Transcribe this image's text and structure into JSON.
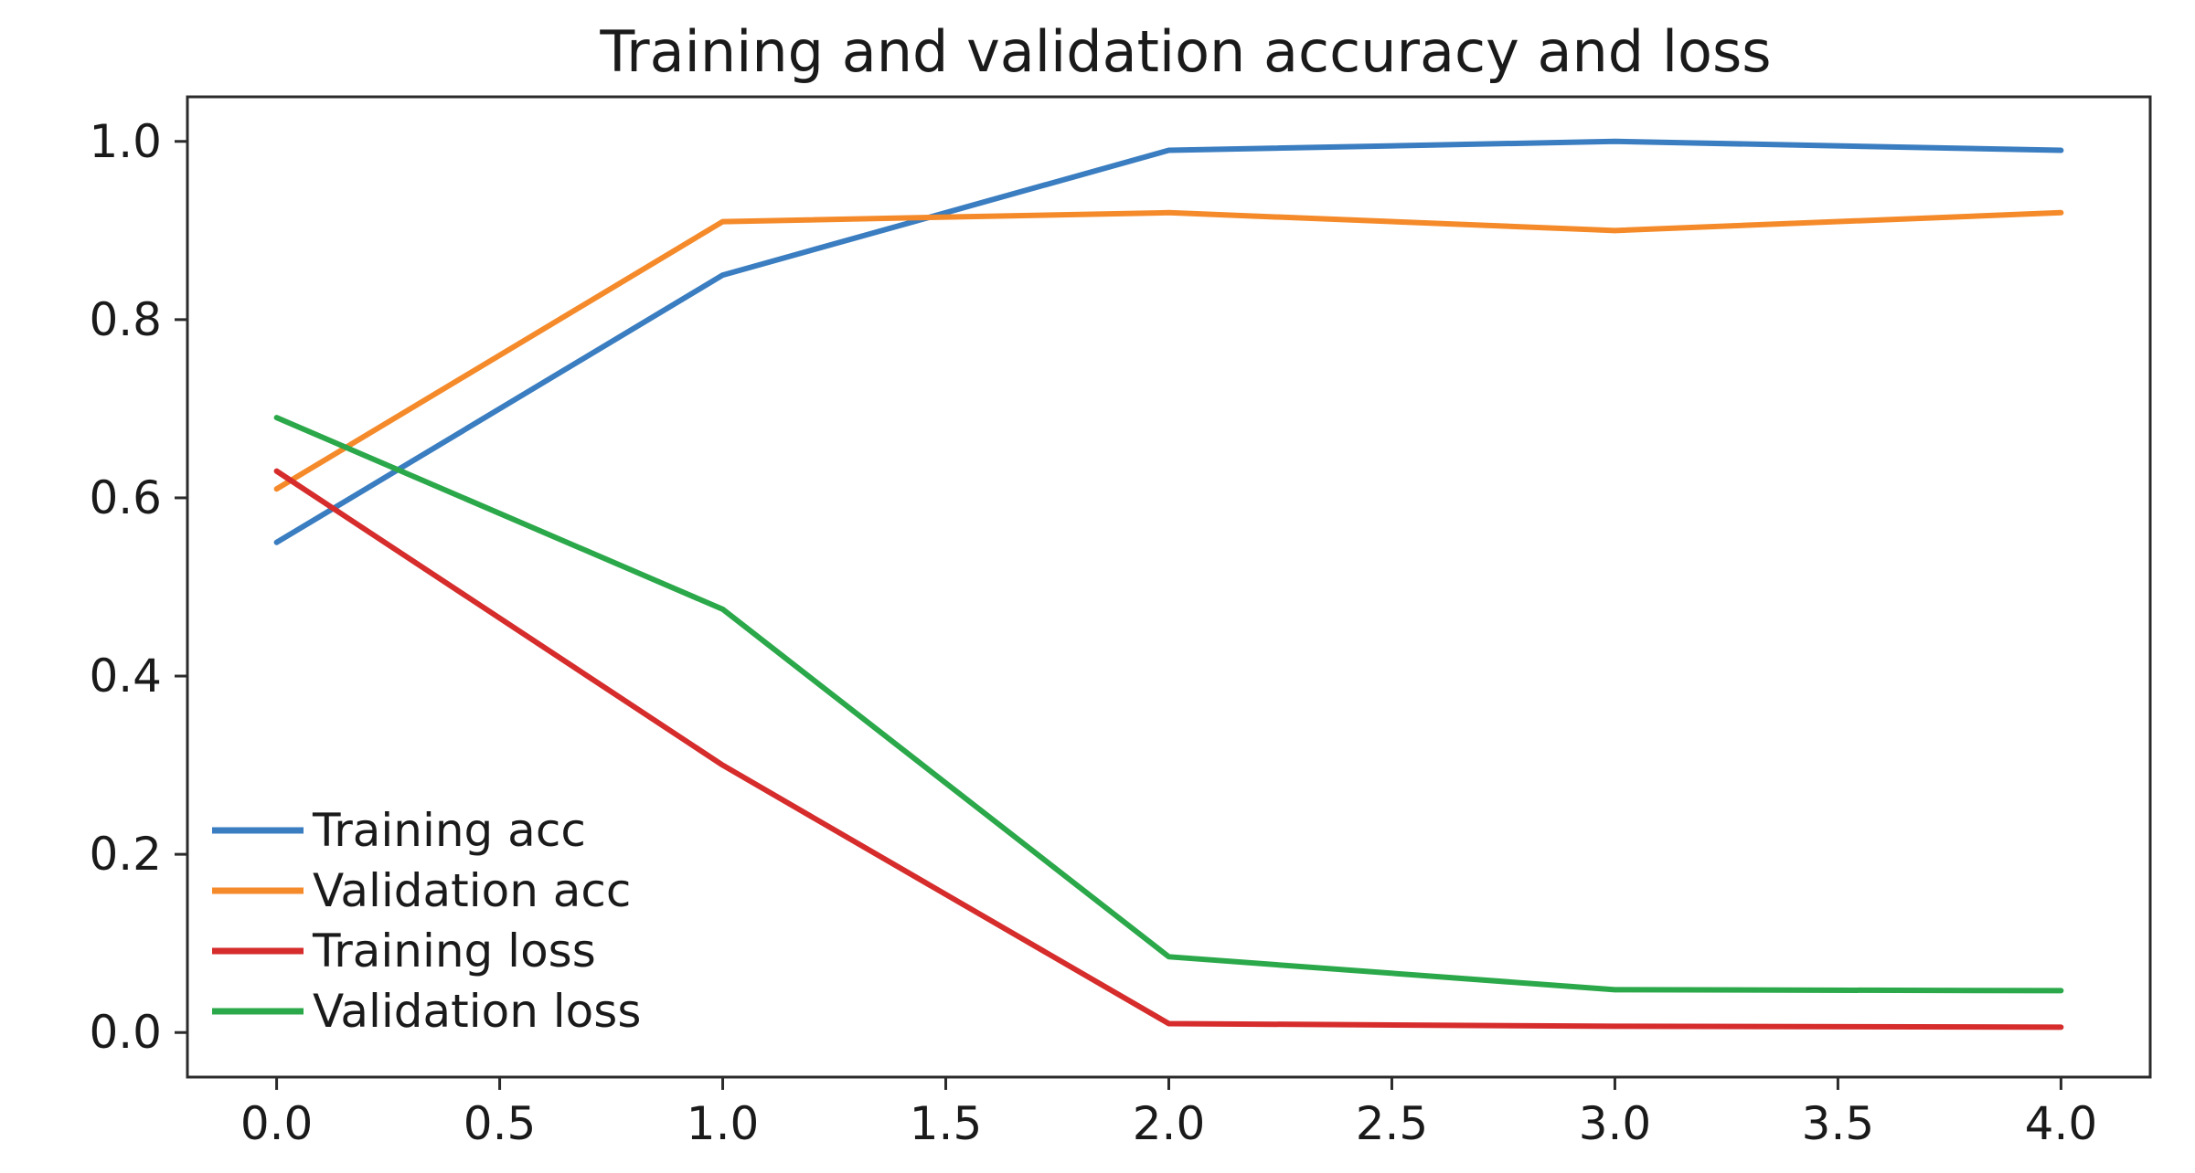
{
  "chart_data": {
    "type": "line",
    "title": "Training and validation accuracy and loss",
    "xlabel": "",
    "ylabel": "",
    "xlim": [
      -0.2,
      4.2
    ],
    "ylim": [
      -0.05,
      1.05
    ],
    "x": [
      0,
      1,
      2,
      3,
      4
    ],
    "xticks": [
      0.0,
      0.5,
      1.0,
      1.5,
      2.0,
      2.5,
      3.0,
      3.5,
      4.0
    ],
    "xtick_labels": [
      "0.0",
      "0.5",
      "1.0",
      "1.5",
      "2.0",
      "2.5",
      "3.0",
      "3.5",
      "4.0"
    ],
    "yticks": [
      0.0,
      0.2,
      0.4,
      0.6,
      0.8,
      1.0
    ],
    "ytick_labels": [
      "0.0",
      "0.2",
      "0.4",
      "0.6",
      "0.8",
      "1.0"
    ],
    "grid": false,
    "legend_position": "lower-left",
    "series": [
      {
        "name": "Training acc",
        "color": "#3a7dc0",
        "values": [
          0.55,
          0.85,
          0.99,
          1.0,
          0.99
        ]
      },
      {
        "name": "Validation acc",
        "color": "#f58a2a",
        "values": [
          0.61,
          0.91,
          0.92,
          0.9,
          0.92
        ]
      },
      {
        "name": "Training loss",
        "color": "#d62c2c",
        "values": [
          0.63,
          0.3,
          0.01,
          0.007,
          0.006
        ]
      },
      {
        "name": "Validation loss",
        "color": "#2ba84a",
        "values": [
          0.69,
          0.475,
          0.085,
          0.048,
          0.047
        ]
      }
    ]
  }
}
